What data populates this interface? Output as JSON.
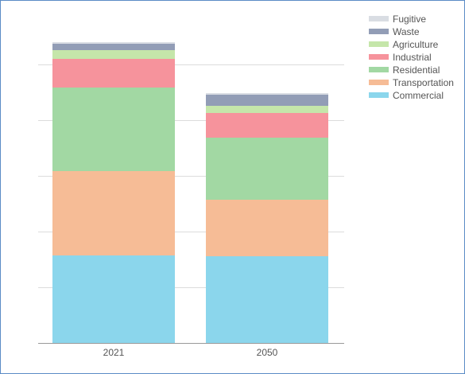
{
  "chart_data": {
    "type": "bar",
    "stacked": true,
    "categories": [
      "2021",
      "2050"
    ],
    "series": [
      {
        "name": "Commercial",
        "color": "#8bd6ec",
        "values": [
          110,
          109
        ]
      },
      {
        "name": "Transportation",
        "color": "#f6bc96",
        "values": [
          106,
          71
        ]
      },
      {
        "name": "Residential",
        "color": "#a2d8a3",
        "values": [
          105,
          78
        ]
      },
      {
        "name": "Industrial",
        "color": "#f6939c",
        "values": [
          36,
          31
        ]
      },
      {
        "name": "Agriculture",
        "color": "#c5e6aa",
        "values": [
          11,
          9
        ]
      },
      {
        "name": "Waste",
        "color": "#929db6",
        "values": [
          8,
          14
        ]
      },
      {
        "name": "Fugitive",
        "color": "#d9dde3",
        "values": [
          2,
          2
        ]
      }
    ],
    "ylim": [
      0,
      420
    ],
    "y_gridlines": [
      70,
      140,
      210,
      280,
      350
    ],
    "grid": true,
    "legend_position": "top-right",
    "legend_order": [
      "Fugitive",
      "Waste",
      "Agriculture",
      "Industrial",
      "Residential",
      "Transportation",
      "Commercial"
    ]
  },
  "colors": {
    "frame_border": "#5b8cc6",
    "gridline": "#dcdcdc",
    "axis": "#999999",
    "text": "#555555"
  }
}
